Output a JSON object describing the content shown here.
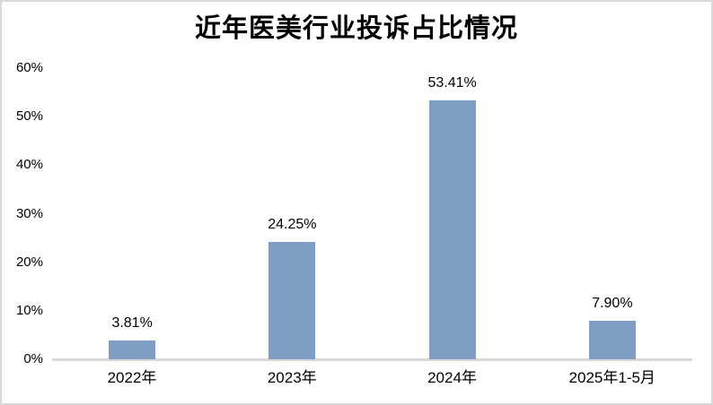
{
  "chart_data": {
    "type": "bar",
    "title": "近年医美行业投诉占比情况",
    "categories": [
      "2022年",
      "2023年",
      "2024年",
      "2025年1-5月"
    ],
    "values": [
      3.81,
      24.25,
      53.41,
      7.9
    ],
    "data_labels": [
      "3.81%",
      "24.25%",
      "53.41%",
      "7.90%"
    ],
    "xlabel": "",
    "ylabel": "",
    "ylim": [
      0,
      60
    ],
    "yticks": [
      0,
      10,
      20,
      30,
      40,
      50,
      60
    ],
    "ytick_labels": [
      "0%",
      "10%",
      "20%",
      "30%",
      "40%",
      "50%",
      "60%"
    ],
    "grid": "off",
    "legend": "none",
    "colors": {
      "bar_fill": "#7f9ec4",
      "axis_line": "#d9d9d9",
      "frame_border": "#d9d9d9",
      "text": "#000000",
      "background": "#ffffff"
    }
  }
}
